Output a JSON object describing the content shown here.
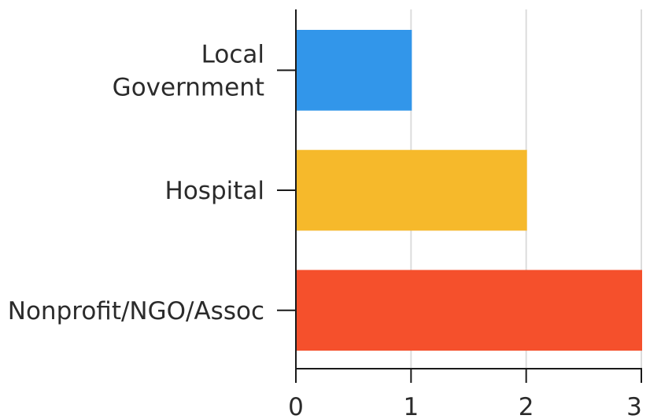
{
  "chart_data": {
    "type": "bar",
    "orientation": "horizontal",
    "categories": [
      [
        "Local",
        "Government"
      ],
      [
        "Hospital"
      ],
      [
        "Nonprofit/NGO/Assoc"
      ]
    ],
    "values": [
      1,
      2,
      3
    ],
    "colors": [
      "#3296ea",
      "#f6b92b",
      "#f5502c"
    ],
    "xticks": [
      "0",
      "1",
      "2",
      "3"
    ],
    "xlim": [
      0,
      3
    ],
    "grid": true,
    "title": "",
    "xlabel": "",
    "ylabel": ""
  }
}
